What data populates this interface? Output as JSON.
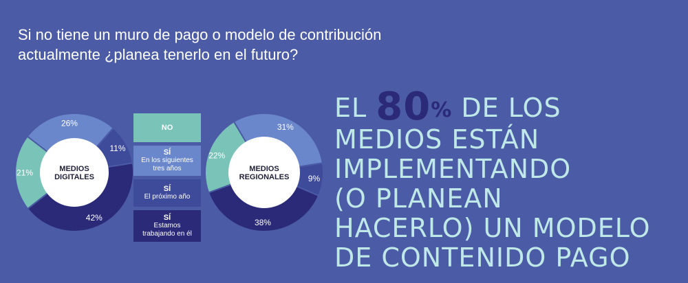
{
  "question": {
    "line1": "Si no tiene un muro de pago o modelo de contribución",
    "line2": "actualmente ¿planea tenerlo en el futuro?"
  },
  "legend": [
    {
      "head": "NO",
      "sub": [],
      "color": "#7ac3b8"
    },
    {
      "head": "SÍ",
      "sub": [
        "En los siguientes",
        "tres años"
      ],
      "color": "#6b87cc"
    },
    {
      "head": "SÍ",
      "sub": [
        "El próximo año"
      ],
      "color": "#3e4a9a"
    },
    {
      "head": "SÍ",
      "sub": [
        "Estamos",
        "trabajando en él"
      ],
      "color": "#2b2a78"
    }
  ],
  "colors": {
    "background": "#4b5ba6",
    "headline": "#bfe9e8",
    "highlight": "#2b2a78",
    "center": "#ffffff"
  },
  "chart_data": [
    {
      "type": "pie",
      "center_label": [
        "MEDIOS",
        "DIGITALES"
      ],
      "slices": [
        {
          "category": "NO",
          "value": 21,
          "label": "21%"
        },
        {
          "category": "SÍ En los siguientes tres años",
          "value": 26,
          "label": "26%"
        },
        {
          "category": "SÍ El próximo año",
          "value": 11,
          "label": "11%"
        },
        {
          "category": "SÍ Estamos trabajando en él",
          "value": 42,
          "label": "42%"
        }
      ]
    },
    {
      "type": "pie",
      "center_label": [
        "MEDIOS",
        "REGIONALES"
      ],
      "slices": [
        {
          "category": "NO",
          "value": 22,
          "label": "22%"
        },
        {
          "category": "SÍ En los siguientes tres años",
          "value": 31,
          "label": "31%"
        },
        {
          "category": "SÍ El próximo año",
          "value": 9,
          "label": "9%"
        },
        {
          "category": "SÍ Estamos trabajando en él",
          "value": 38,
          "label": "38%"
        }
      ]
    }
  ],
  "headline": {
    "pre": "EL",
    "number": "80",
    "percent": "%",
    "line1_rest": "DE LOS",
    "line2": "MEDIOS ESTÁN",
    "line3": "IMPLEMENTANDO",
    "line4": "(O PLANEAN",
    "line5": "HACERLO) UN MODELO",
    "line6": "DE CONTENIDO PAGO"
  }
}
